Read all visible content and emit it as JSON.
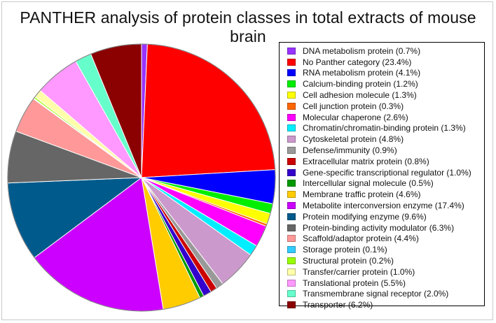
{
  "chart_data": {
    "type": "pie",
    "title": "PANTHER analysis of protein classes in total extracts of mouse brain",
    "legend_position": "right",
    "slices": [
      {
        "label": "DNA metabolism protein (0.7%)",
        "value": 0.7,
        "color": "#9933ff"
      },
      {
        "label": "No Panther category (23.4%)",
        "value": 23.4,
        "color": "#ff0000"
      },
      {
        "label": "RNA metabolism protein (4.1%)",
        "value": 4.1,
        "color": "#0000ff"
      },
      {
        "label": "Calcium-binding protein (1.2%)",
        "value": 1.2,
        "color": "#00ee00"
      },
      {
        "label": "Cell adhesion molecule (1.3%)",
        "value": 1.3,
        "color": "#ffff00"
      },
      {
        "label": "Cell junction protein (0.3%)",
        "value": 0.3,
        "color": "#ff6600"
      },
      {
        "label": "Molecular chaperone (2.6%)",
        "value": 2.6,
        "color": "#ff00ff"
      },
      {
        "label": "Chromatin/chromatin-binding protein (1.3%)",
        "value": 1.3,
        "color": "#00eeff"
      },
      {
        "label": "Cytoskeletal protein (4.8%)",
        "value": 4.8,
        "color": "#cc99cc"
      },
      {
        "label": "Defense/immunity (0.9%)",
        "value": 0.9,
        "color": "#999999"
      },
      {
        "label": "Extracellular matrix protein (0.8%)",
        "value": 0.8,
        "color": "#cc0000"
      },
      {
        "label": "Gene-specific transcriptional regulator (1.0%)",
        "value": 1.0,
        "color": "#3300cc"
      },
      {
        "label": "Intercellular signal molecule (0.5%)",
        "value": 0.5,
        "color": "#009900"
      },
      {
        "label": "Membrane traffic protein (4.6%)",
        "value": 4.6,
        "color": "#ffcc00"
      },
      {
        "label": "Metabolite interconversion enzyme (17.4%)",
        "value": 17.4,
        "color": "#cc00ff"
      },
      {
        "label": "Protein modifying enzyme (9.6%)",
        "value": 9.6,
        "color": "#005a8c"
      },
      {
        "label": "Protein-binding activity modulator (6.3%)",
        "value": 6.3,
        "color": "#666666"
      },
      {
        "label": "Scaffold/adaptor protein (4.4%)",
        "value": 4.4,
        "color": "#ff9999"
      },
      {
        "label": "Storage protein (0.1%)",
        "value": 0.1,
        "color": "#33ccff"
      },
      {
        "label": "Structural protein (0.2%)",
        "value": 0.2,
        "color": "#99ff00"
      },
      {
        "label": "Transfer/carrier protein (1.0%)",
        "value": 1.0,
        "color": "#ffffaa"
      },
      {
        "label": "Translational protein (5.5%)",
        "value": 5.5,
        "color": "#ff99ff"
      },
      {
        "label": "Transmembrane signal receptor (2.0%)",
        "value": 2.0,
        "color": "#66ffcc"
      },
      {
        "label": "Transporter (6.2%)",
        "value": 6.2,
        "color": "#8b0000"
      }
    ]
  }
}
